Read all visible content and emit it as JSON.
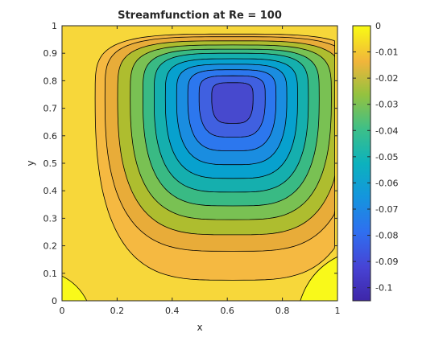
{
  "chart_data": {
    "type": "contour",
    "title": "Streamfunction at Re = 100",
    "xlabel": "x",
    "ylabel": "y",
    "xlim": [
      0,
      1
    ],
    "ylim": [
      0,
      1
    ],
    "x_ticks": [
      "0",
      "0.2",
      "0.4",
      "0.6",
      "0.8",
      "1"
    ],
    "x_tick_values": [
      0,
      0.2,
      0.4,
      0.6,
      0.8,
      1
    ],
    "y_ticks": [
      "0",
      "0.1",
      "0.2",
      "0.3",
      "0.4",
      "0.5",
      "0.6",
      "0.7",
      "0.8",
      "0.9",
      "1"
    ],
    "y_tick_values": [
      0,
      0.1,
      0.2,
      0.3,
      0.4,
      0.5,
      0.6,
      0.7,
      0.8,
      0.9,
      1
    ],
    "vortex_center": [
      0.62,
      0.735
    ],
    "colorbar": {
      "range": [
        -0.105,
        0
      ],
      "ticks": [
        "0",
        "-0.01",
        "-0.02",
        "-0.03",
        "-0.04",
        "-0.05",
        "-0.06",
        "-0.07",
        "-0.08",
        "-0.09",
        "-0.1"
      ],
      "tick_values": [
        0,
        -0.01,
        -0.02,
        -0.03,
        -0.04,
        -0.05,
        -0.06,
        -0.07,
        -0.08,
        -0.09,
        -0.1
      ]
    },
    "levels": [
      {
        "value": -0.003,
        "color": "#f5b941",
        "rx": 0.49,
        "ry_up": 0.235,
        "ry_down": 0.66
      },
      {
        "value": -0.017,
        "color": "#e8ac39",
        "rx": 0.455,
        "ry_up": 0.225,
        "ry_down": 0.555
      },
      {
        "value": -0.027,
        "color": "#aebd2f",
        "rx": 0.41,
        "ry_up": 0.21,
        "ry_down": 0.495
      },
      {
        "value": -0.036,
        "color": "#79c153",
        "rx": 0.365,
        "ry_up": 0.195,
        "ry_down": 0.44
      },
      {
        "value": -0.045,
        "color": "#39ba84",
        "rx": 0.32,
        "ry_up": 0.18,
        "ry_down": 0.39
      },
      {
        "value": -0.054,
        "color": "#15afae",
        "rx": 0.28,
        "ry_up": 0.165,
        "ry_down": 0.34
      },
      {
        "value": -0.062,
        "color": "#07a1ce",
        "rx": 0.24,
        "ry_up": 0.145,
        "ry_down": 0.29
      },
      {
        "value": -0.07,
        "color": "#1a8de0",
        "rx": 0.2,
        "ry_up": 0.125,
        "ry_down": 0.24
      },
      {
        "value": -0.078,
        "color": "#2c77ee",
        "rx": 0.16,
        "ry_up": 0.105,
        "ry_down": 0.19
      },
      {
        "value": -0.086,
        "color": "#4060e0",
        "rx": 0.12,
        "ry_up": 0.083,
        "ry_down": 0.14
      },
      {
        "value": -0.094,
        "color": "#4749ce",
        "rx": 0.075,
        "ry_up": 0.058,
        "ry_down": 0.09
      }
    ],
    "background_color": "#f7d73a",
    "corner_color": "#f9f91a"
  }
}
